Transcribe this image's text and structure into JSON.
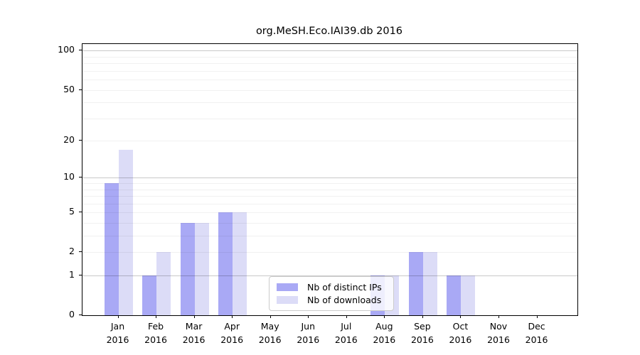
{
  "chart_data": {
    "type": "bar",
    "title": "org.MeSH.Eco.IAI39.db 2016",
    "categories": [
      "Jan 2016",
      "Feb 2016",
      "Mar 2016",
      "Apr 2016",
      "May 2016",
      "Jun 2016",
      "Jul 2016",
      "Aug 2016",
      "Sep 2016",
      "Oct 2016",
      "Nov 2016",
      "Dec 2016"
    ],
    "series": [
      {
        "name": "Nb of distinct IPs",
        "color": "#a9a9f5",
        "values": [
          9,
          1,
          4,
          5,
          0,
          0,
          0,
          1,
          2,
          1,
          0,
          0
        ]
      },
      {
        "name": "Nb of downloads",
        "color": "#dcdcf7",
        "values": [
          17,
          2,
          4,
          5,
          0,
          0,
          0,
          1,
          2,
          1,
          0,
          0
        ]
      }
    ],
    "xlabel": "",
    "ylabel": "",
    "yscale": "log1p",
    "ylim": [
      0,
      113
    ],
    "yticks": [
      0,
      1,
      2,
      5,
      10,
      20,
      50,
      100
    ],
    "major_gridlines": [
      1,
      10,
      100
    ],
    "minor_gridlines": [
      2,
      3,
      4,
      5,
      6,
      7,
      8,
      9,
      20,
      30,
      40,
      50,
      60,
      70,
      80,
      90
    ],
    "grid": "on",
    "legend_position": "lower-center-inside",
    "bar_group": "paired, no gap within month"
  },
  "colors": {
    "background": "#ffffff",
    "spine": "#000000",
    "major_grid": "#c9c9c9",
    "minor_grid": "#f0f0f0",
    "legend_border": "#cccccc"
  }
}
